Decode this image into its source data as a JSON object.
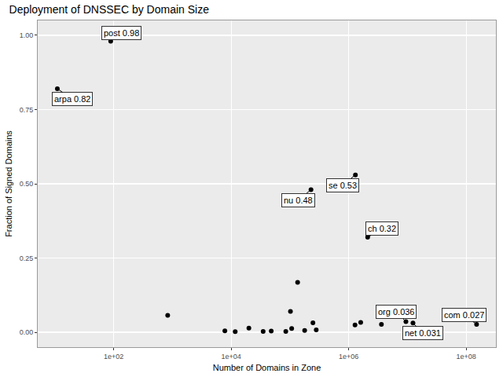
{
  "chart_data": {
    "type": "scatter",
    "title": "Deployment of DNSSEC by Domain Size",
    "x_label": "Number of Domains in Zone",
    "y_label": "Fraction of Signed Domains",
    "x": [
      11,
      89,
      830,
      7800,
      11700,
      20000,
      35000,
      48000,
      85000,
      102000,
      107000,
      135000,
      178000,
      228000,
      246000,
      280000,
      1280000,
      1300000,
      1600000,
      2100000,
      3600000,
      9400000,
      12400000,
      150000000
    ],
    "values": [
      0.82,
      0.98,
      0.057,
      0.005,
      0.002,
      0.014,
      0.003,
      0.004,
      0.003,
      0.07,
      0.013,
      0.168,
      0.006,
      0.48,
      0.032,
      0.008,
      0.025,
      0.53,
      0.033,
      0.32,
      0.027,
      0.036,
      0.031,
      0.027
    ],
    "labels": [
      "arpa 0.82",
      "post 0.98",
      null,
      null,
      null,
      null,
      null,
      null,
      null,
      null,
      null,
      null,
      null,
      "nu 0.48",
      null,
      null,
      null,
      "se 0.53",
      null,
      "ch 0.32",
      null,
      "org 0.036",
      "net 0.031",
      "com 0.027"
    ],
    "color": "#000000",
    "log": "x",
    "grid": true,
    "xlim": [
      5.1,
      320000000
    ],
    "ylim": [
      -0.05,
      1.05
    ],
    "xticks": [
      {
        "value": 100,
        "label": "1e+02"
      },
      {
        "value": 10000,
        "label": "1e+04"
      },
      {
        "value": 1000000,
        "label": "1e+06"
      },
      {
        "value": 100000000,
        "label": "1e+08"
      }
    ],
    "yticks": [
      {
        "value": 0,
        "label": "0.00"
      },
      {
        "value": 0.25,
        "label": "0.25"
      },
      {
        "value": 0.5,
        "label": "0.50"
      },
      {
        "value": 0.75,
        "label": "0.75"
      },
      {
        "value": 1,
        "label": "1.00"
      }
    ]
  }
}
